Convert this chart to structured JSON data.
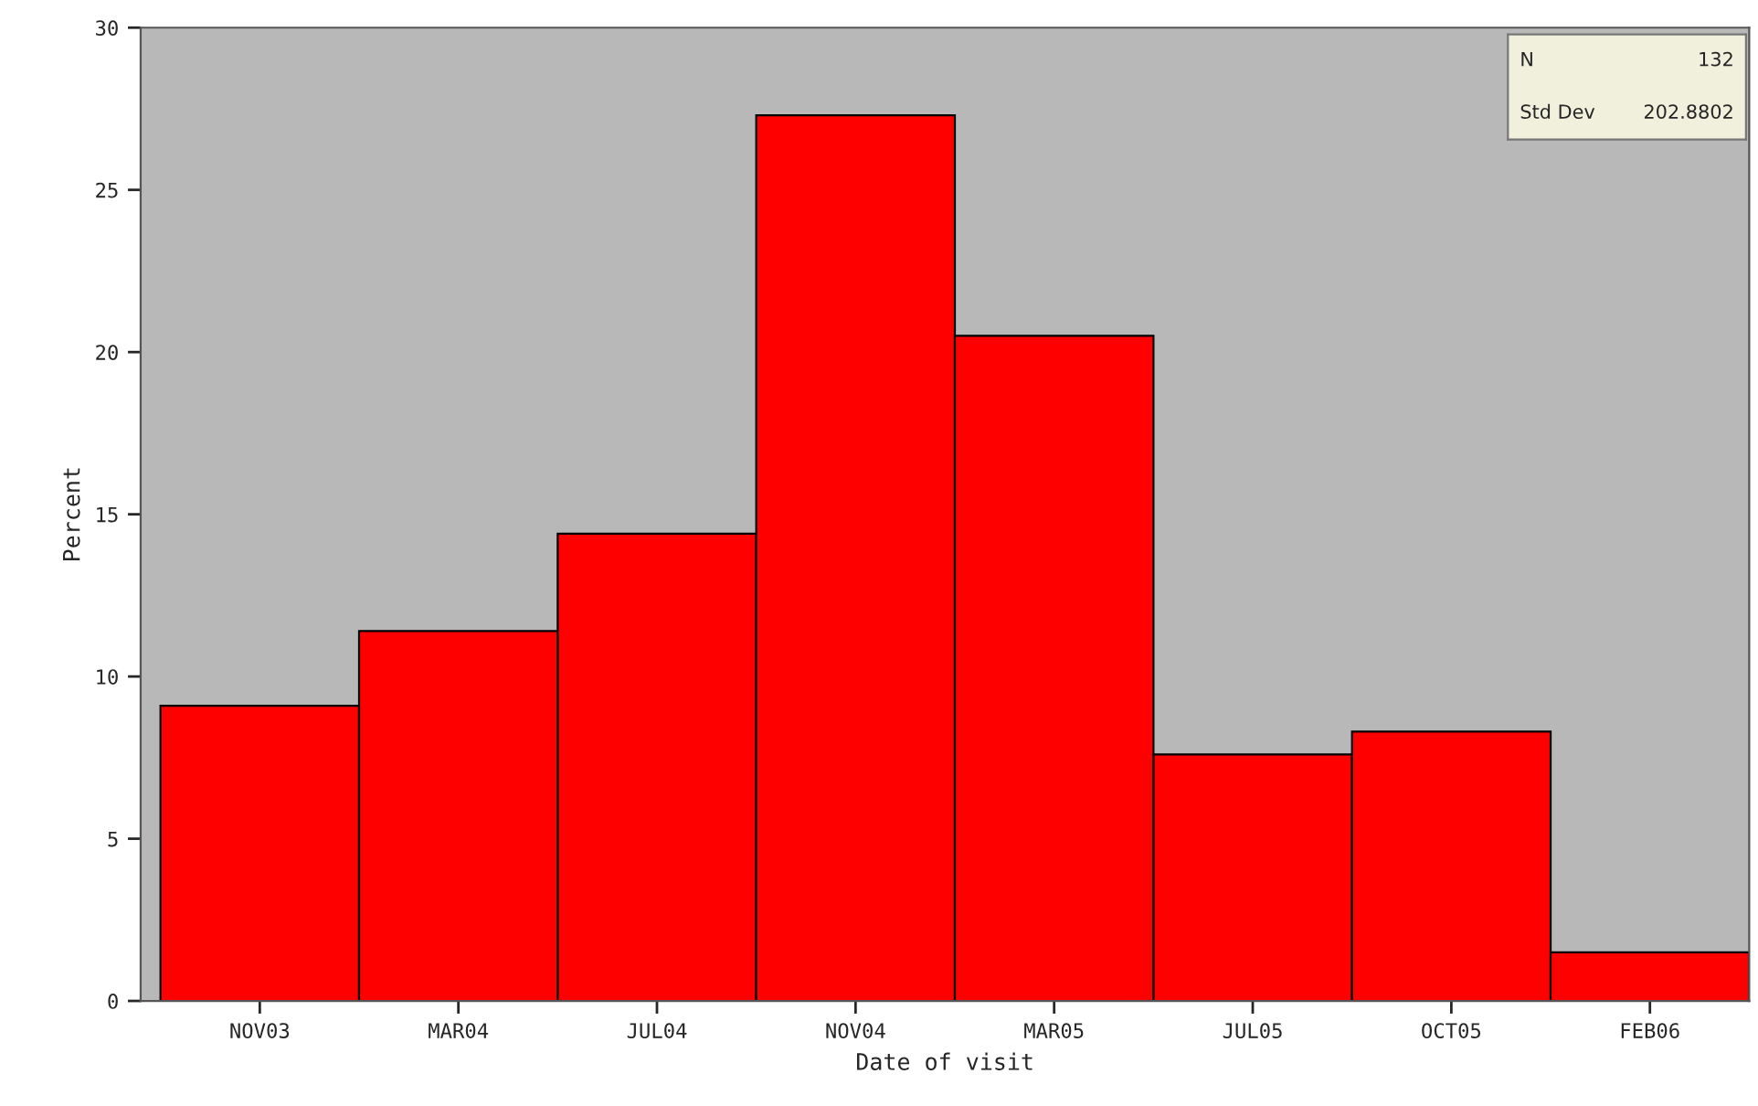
{
  "chart_data": {
    "type": "bar",
    "xlabel": "Date of visit",
    "ylabel": "Percent",
    "categories": [
      "NOV03",
      "MAR04",
      "JUL04",
      "NOV04",
      "MAR05",
      "JUL05",
      "OCT05",
      "FEB06"
    ],
    "values": [
      9.1,
      11.4,
      14.4,
      27.3,
      20.5,
      7.6,
      8.3,
      1.5
    ],
    "color": "#ff0000",
    "ylim": [
      0,
      30
    ],
    "yticks": [
      0,
      5,
      10,
      15,
      20,
      25,
      30
    ],
    "grid": false,
    "annotations": [
      "N",
      "132",
      "Std Dev",
      "202.8802"
    ]
  }
}
